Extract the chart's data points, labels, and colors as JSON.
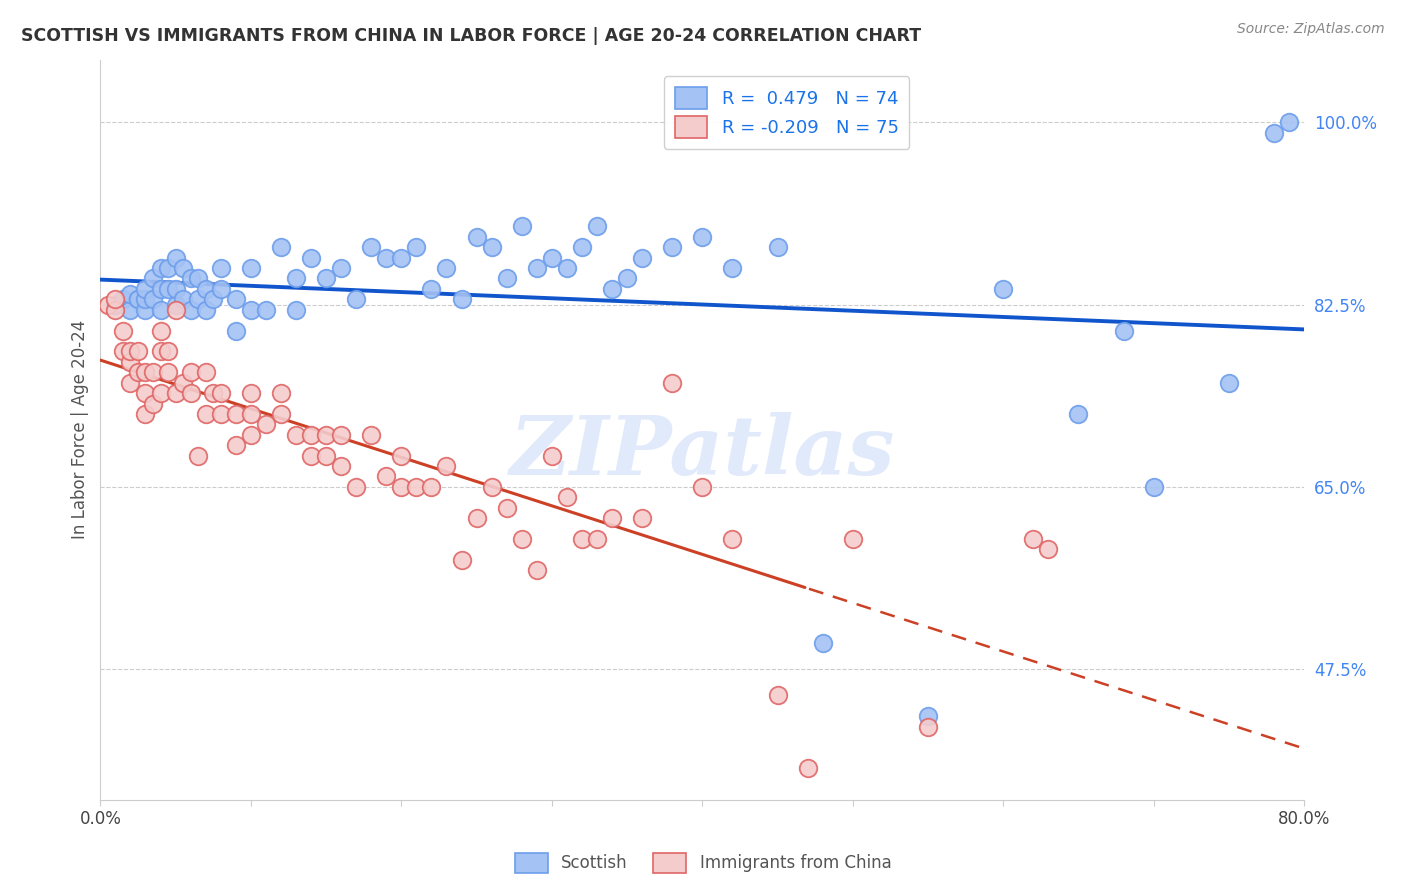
{
  "title": "SCOTTISH VS IMMIGRANTS FROM CHINA IN LABOR FORCE | AGE 20-24 CORRELATION CHART",
  "source": "Source: ZipAtlas.com",
  "ylabel": "In Labor Force | Age 20-24",
  "ytick_labels": [
    "100.0%",
    "82.5%",
    "65.0%",
    "47.5%"
  ],
  "ytick_values": [
    1.0,
    0.825,
    0.65,
    0.475
  ],
  "xlim": [
    0.0,
    0.8
  ],
  "ylim": [
    0.35,
    1.06
  ],
  "watermark": "ZIPatlas",
  "scottish_color": "#a4c2f4",
  "china_color": "#f4cccc",
  "scottish_edge_color": "#6d9eeb",
  "china_edge_color": "#e06666",
  "scottish_line_color": "#1155cc",
  "china_line_color": "#cc4125",
  "legend_R_scottish": "R =  0.479",
  "legend_N_scottish": "N = 74",
  "legend_R_china": "R = -0.209",
  "legend_N_china": "N = 75",
  "scottish_x": [
    0.01,
    0.015,
    0.02,
    0.02,
    0.025,
    0.025,
    0.03,
    0.03,
    0.03,
    0.035,
    0.035,
    0.04,
    0.04,
    0.04,
    0.045,
    0.045,
    0.05,
    0.05,
    0.05,
    0.055,
    0.055,
    0.06,
    0.06,
    0.065,
    0.065,
    0.07,
    0.07,
    0.075,
    0.08,
    0.08,
    0.09,
    0.09,
    0.1,
    0.1,
    0.11,
    0.12,
    0.13,
    0.13,
    0.14,
    0.15,
    0.16,
    0.17,
    0.18,
    0.19,
    0.2,
    0.21,
    0.22,
    0.23,
    0.24,
    0.25,
    0.26,
    0.27,
    0.28,
    0.29,
    0.3,
    0.31,
    0.32,
    0.33,
    0.34,
    0.35,
    0.36,
    0.38,
    0.4,
    0.42,
    0.45,
    0.48,
    0.55,
    0.6,
    0.65,
    0.68,
    0.7,
    0.75,
    0.78,
    0.79
  ],
  "scottish_y": [
    0.825,
    0.83,
    0.82,
    0.835,
    0.83,
    0.83,
    0.82,
    0.83,
    0.84,
    0.83,
    0.85,
    0.82,
    0.84,
    0.86,
    0.84,
    0.86,
    0.825,
    0.84,
    0.87,
    0.83,
    0.86,
    0.82,
    0.85,
    0.83,
    0.85,
    0.82,
    0.84,
    0.83,
    0.84,
    0.86,
    0.8,
    0.83,
    0.82,
    0.86,
    0.82,
    0.88,
    0.82,
    0.85,
    0.87,
    0.85,
    0.86,
    0.83,
    0.88,
    0.87,
    0.87,
    0.88,
    0.84,
    0.86,
    0.83,
    0.89,
    0.88,
    0.85,
    0.9,
    0.86,
    0.87,
    0.86,
    0.88,
    0.9,
    0.84,
    0.85,
    0.87,
    0.88,
    0.89,
    0.86,
    0.88,
    0.5,
    0.43,
    0.84,
    0.72,
    0.8,
    0.65,
    0.75,
    0.99,
    1.0
  ],
  "china_x": [
    0.005,
    0.01,
    0.01,
    0.015,
    0.015,
    0.02,
    0.02,
    0.02,
    0.025,
    0.025,
    0.03,
    0.03,
    0.03,
    0.035,
    0.035,
    0.04,
    0.04,
    0.04,
    0.045,
    0.045,
    0.05,
    0.05,
    0.055,
    0.06,
    0.06,
    0.065,
    0.07,
    0.07,
    0.075,
    0.08,
    0.08,
    0.09,
    0.09,
    0.1,
    0.1,
    0.1,
    0.11,
    0.12,
    0.12,
    0.13,
    0.14,
    0.14,
    0.15,
    0.15,
    0.16,
    0.16,
    0.17,
    0.18,
    0.19,
    0.2,
    0.2,
    0.21,
    0.22,
    0.23,
    0.24,
    0.25,
    0.26,
    0.27,
    0.28,
    0.29,
    0.3,
    0.31,
    0.32,
    0.33,
    0.34,
    0.36,
    0.38,
    0.4,
    0.42,
    0.45,
    0.47,
    0.5,
    0.55,
    0.62,
    0.63
  ],
  "china_y": [
    0.825,
    0.82,
    0.83,
    0.78,
    0.8,
    0.75,
    0.77,
    0.78,
    0.76,
    0.78,
    0.72,
    0.74,
    0.76,
    0.73,
    0.76,
    0.74,
    0.78,
    0.8,
    0.76,
    0.78,
    0.82,
    0.74,
    0.75,
    0.74,
    0.76,
    0.68,
    0.72,
    0.76,
    0.74,
    0.72,
    0.74,
    0.69,
    0.72,
    0.7,
    0.72,
    0.74,
    0.71,
    0.72,
    0.74,
    0.7,
    0.68,
    0.7,
    0.68,
    0.7,
    0.67,
    0.7,
    0.65,
    0.7,
    0.66,
    0.65,
    0.68,
    0.65,
    0.65,
    0.67,
    0.58,
    0.62,
    0.65,
    0.63,
    0.6,
    0.57,
    0.68,
    0.64,
    0.6,
    0.6,
    0.62,
    0.62,
    0.75,
    0.65,
    0.6,
    0.45,
    0.38,
    0.6,
    0.42,
    0.6,
    0.59
  ],
  "background_color": "#ffffff",
  "grid_color": "#cccccc"
}
